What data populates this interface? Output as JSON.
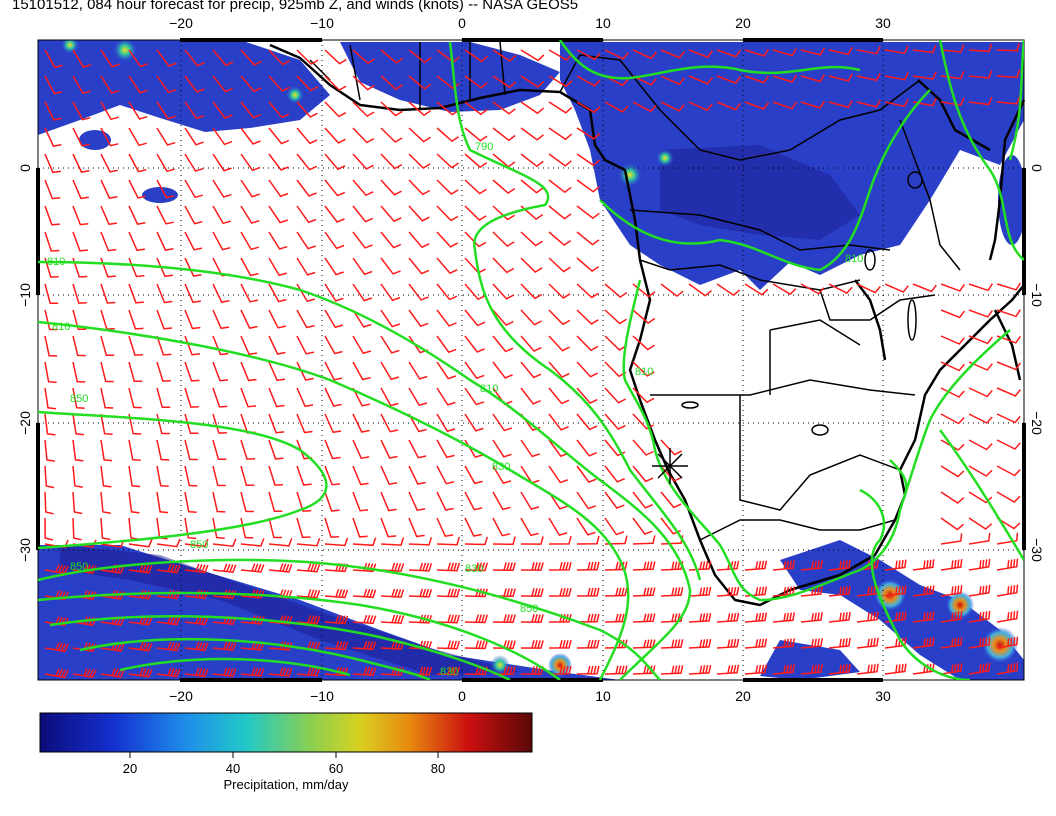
{
  "title": "15101512, 084 hour forecast for precip, 925mb Z, and winds (knots) -- NASA GEOS5",
  "axes": {
    "lon_ticks": [
      "−20",
      "−10",
      "0",
      "10",
      "20",
      "30"
    ],
    "lat_ticks": [
      "0",
      "−10",
      "−20",
      "−30"
    ]
  },
  "colorbar": {
    "ticks": [
      "20",
      "40",
      "60",
      "80"
    ],
    "label": "Precipitation, mm/day"
  },
  "contour_labels": [
    "790",
    "810",
    "810",
    "830",
    "850",
    "810",
    "830",
    "850",
    "850",
    "810",
    "850",
    "830",
    "810"
  ],
  "colors": {
    "precip_low": "#1a1a8c",
    "precip_mid": "#2a4bd6",
    "contour": "#22dd22",
    "barb": "#ff1a1a",
    "coast": "#000000"
  }
}
